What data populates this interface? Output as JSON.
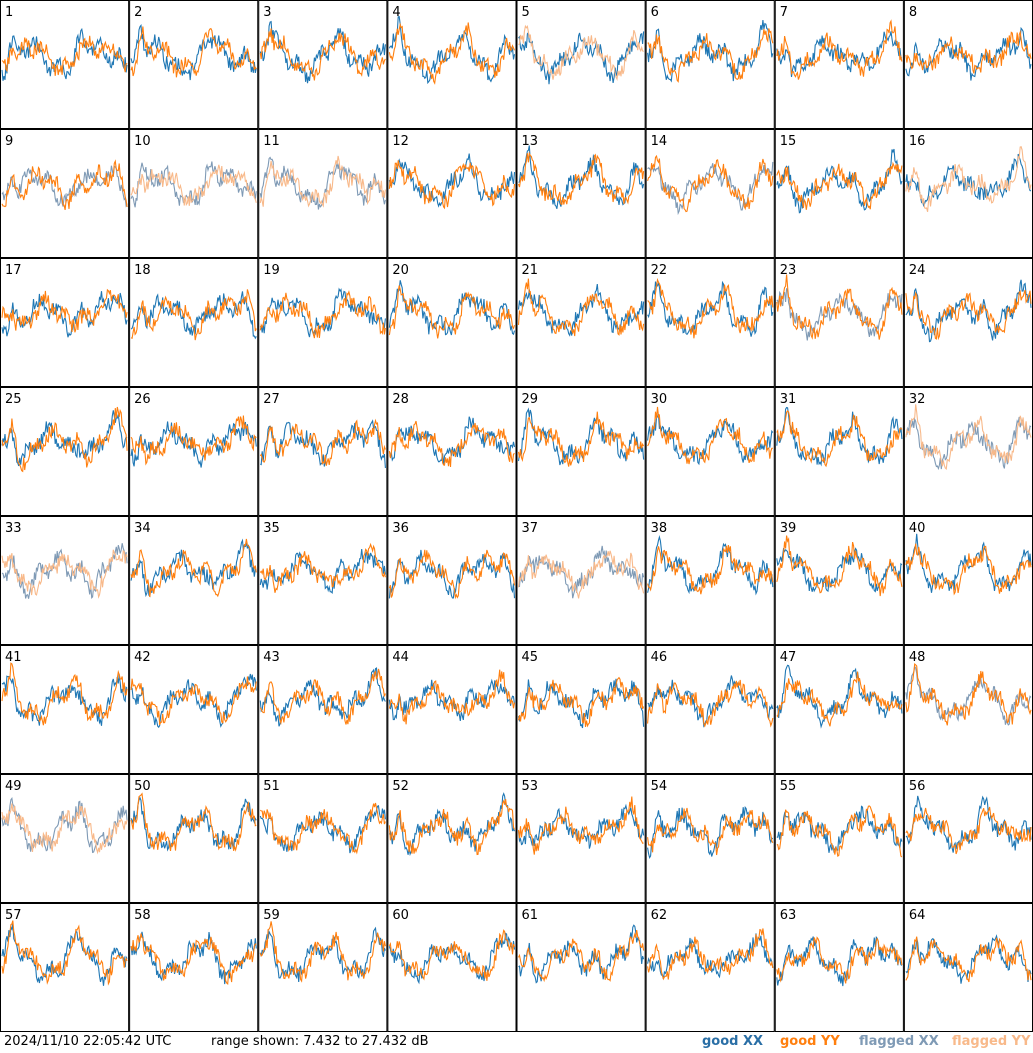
{
  "chart_data": {
    "type": "line",
    "layout": "8x8 small multiples, one panel per antenna",
    "y_scale": "dB",
    "y_range": [
      7.432,
      27.432
    ],
    "grid": false,
    "legend_placement": "bottom-right",
    "colors": {
      "good_xx": "#1f77b4",
      "good_yy": "#ff7f0e",
      "flagged_xx": "#7f9ab5",
      "flagged_yy": "#f8b98a"
    },
    "legend": {
      "good_xx": "good XX",
      "good_yy": "good YY",
      "flagged_xx": "flagged XX",
      "flagged_yy": "flagged YY"
    },
    "panels": [
      {
        "label": "1",
        "x": "good",
        "y": "good"
      },
      {
        "label": "2",
        "x": "good",
        "y": "good"
      },
      {
        "label": "3",
        "x": "good",
        "y": "good"
      },
      {
        "label": "4",
        "x": "good",
        "y": "good"
      },
      {
        "label": "5",
        "x": "good",
        "y": "flagged"
      },
      {
        "label": "6",
        "x": "good",
        "y": "good"
      },
      {
        "label": "7",
        "x": "good",
        "y": "good"
      },
      {
        "label": "8",
        "x": "good",
        "y": "good"
      },
      {
        "label": "9",
        "x": "flagged",
        "y": "good"
      },
      {
        "label": "10",
        "x": "flagged",
        "y": "flagged"
      },
      {
        "label": "11",
        "x": "flagged",
        "y": "flagged"
      },
      {
        "label": "12",
        "x": "good",
        "y": "good"
      },
      {
        "label": "13",
        "x": "good",
        "y": "good"
      },
      {
        "label": "14",
        "x": "flagged",
        "y": "good"
      },
      {
        "label": "15",
        "x": "good",
        "y": "good"
      },
      {
        "label": "16",
        "x": "good",
        "y": "flagged"
      },
      {
        "label": "17",
        "x": "good",
        "y": "good"
      },
      {
        "label": "18",
        "x": "good",
        "y": "good"
      },
      {
        "label": "19",
        "x": "good",
        "y": "good"
      },
      {
        "label": "20",
        "x": "good",
        "y": "good"
      },
      {
        "label": "21",
        "x": "good",
        "y": "good"
      },
      {
        "label": "22",
        "x": "good",
        "y": "good"
      },
      {
        "label": "23",
        "x": "flagged",
        "y": "good"
      },
      {
        "label": "24",
        "x": "good",
        "y": "good"
      },
      {
        "label": "25",
        "x": "good",
        "y": "good"
      },
      {
        "label": "26",
        "x": "good",
        "y": "good"
      },
      {
        "label": "27",
        "x": "good",
        "y": "good"
      },
      {
        "label": "28",
        "x": "good",
        "y": "good"
      },
      {
        "label": "29",
        "x": "good",
        "y": "good"
      },
      {
        "label": "30",
        "x": "good",
        "y": "good"
      },
      {
        "label": "31",
        "x": "good",
        "y": "good"
      },
      {
        "label": "32",
        "x": "flagged",
        "y": "flagged"
      },
      {
        "label": "33",
        "x": "flagged",
        "y": "flagged"
      },
      {
        "label": "34",
        "x": "good",
        "y": "good"
      },
      {
        "label": "35",
        "x": "good",
        "y": "good"
      },
      {
        "label": "36",
        "x": "good",
        "y": "good"
      },
      {
        "label": "37",
        "x": "flagged",
        "y": "flagged"
      },
      {
        "label": "38",
        "x": "good",
        "y": "good"
      },
      {
        "label": "39",
        "x": "good",
        "y": "good"
      },
      {
        "label": "40",
        "x": "good",
        "y": "good"
      },
      {
        "label": "41",
        "x": "good",
        "y": "good"
      },
      {
        "label": "42",
        "x": "good",
        "y": "good"
      },
      {
        "label": "43",
        "x": "good",
        "y": "good"
      },
      {
        "label": "44",
        "x": "good",
        "y": "good"
      },
      {
        "label": "45",
        "x": "good",
        "y": "good"
      },
      {
        "label": "46",
        "x": "good",
        "y": "good"
      },
      {
        "label": "47",
        "x": "good",
        "y": "good"
      },
      {
        "label": "48",
        "x": "flagged",
        "y": "good"
      },
      {
        "label": "49",
        "x": "flagged",
        "y": "flagged"
      },
      {
        "label": "50",
        "x": "good",
        "y": "good"
      },
      {
        "label": "51",
        "x": "good",
        "y": "good"
      },
      {
        "label": "52",
        "x": "good",
        "y": "good"
      },
      {
        "label": "53",
        "x": "good",
        "y": "good"
      },
      {
        "label": "54",
        "x": "good",
        "y": "good"
      },
      {
        "label": "55",
        "x": "good",
        "y": "good"
      },
      {
        "label": "56",
        "x": "good",
        "y": "good"
      },
      {
        "label": "57",
        "x": "good",
        "y": "good"
      },
      {
        "label": "58",
        "x": "good",
        "y": "good"
      },
      {
        "label": "59",
        "x": "good",
        "y": "good"
      },
      {
        "label": "60",
        "x": "good",
        "y": "good"
      },
      {
        "label": "61",
        "x": "good",
        "y": "good"
      },
      {
        "label": "62",
        "x": "good",
        "y": "good"
      },
      {
        "label": "63",
        "x": "good",
        "y": "good"
      },
      {
        "label": "64",
        "x": "good",
        "y": "good"
      }
    ]
  },
  "footer": {
    "timestamp": "2024/11/10 22:05:42 UTC",
    "range_text": "range shown: 7.432 to 27.432 dB"
  }
}
